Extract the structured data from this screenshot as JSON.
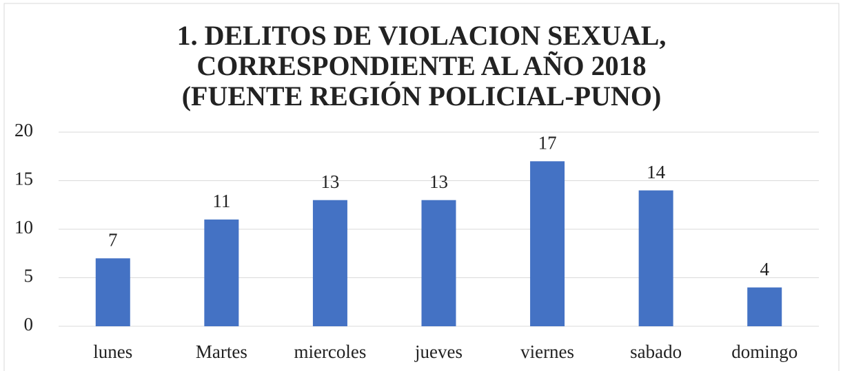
{
  "chart_data": {
    "type": "bar",
    "title": "1. DELITOS DE VIOLACION SEXUAL, CORRESPONDIENTE AL AÑO 2018 (FUENTE REGIÓN POLICIAL-PUNO)",
    "categories": [
      "lunes",
      "Martes",
      "miercoles",
      "jueves",
      "viernes",
      "sabado",
      "domingo"
    ],
    "values": [
      7,
      11,
      13,
      13,
      17,
      14,
      4
    ],
    "color": "#4472c4",
    "ylim": [
      0,
      20
    ],
    "yticks": [
      0,
      5,
      10,
      15,
      20
    ],
    "grid": true
  }
}
